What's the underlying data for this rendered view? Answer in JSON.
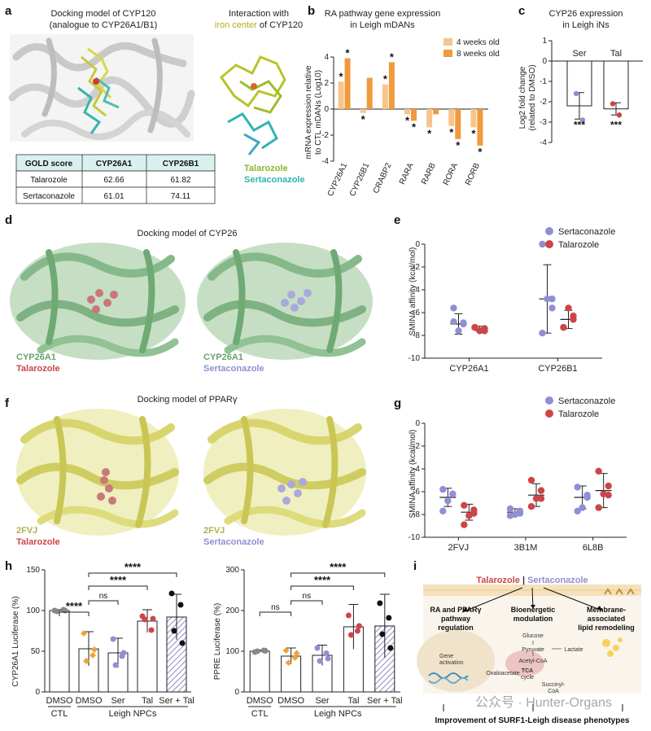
{
  "panels": {
    "a": {
      "letter": "a",
      "title_line1": "Docking model of CYP120",
      "title_line2": "(analogue to CYP26A1/B1)",
      "inset_line1": "Interaction with",
      "inset_line2_a": "iron center",
      "inset_line2_b": " of CYP120",
      "legend_talarozole": "Talarozole",
      "legend_sertaconazole": "Sertaconazole",
      "table": {
        "headers": [
          "GOLD score",
          "CYP26A1",
          "CYP26B1"
        ],
        "rows": [
          [
            "Talarozole",
            "62.66",
            "61.82"
          ],
          [
            "Sertaconazole",
            "61.01",
            "74.11"
          ]
        ]
      }
    },
    "b": {
      "letter": "b",
      "title_line1": "RA pathway gene expression",
      "title_line2": "in Leigh mDANs",
      "ylabel_line1": "mRNA expression relative",
      "ylabel_line2": "to CTL mDANs (Log10)",
      "legend": [
        "4 weeks old",
        "8 weeks old"
      ],
      "star": "*"
    },
    "c": {
      "letter": "c",
      "title_line1": "CYP26 expression",
      "title_line2": "in Leigh iNs",
      "ylabel_line1": "Log2 fold change",
      "ylabel_line2": "(related to DMSO)",
      "sig": "***"
    },
    "d": {
      "letter": "d",
      "title": "Docking model of CYP26",
      "left_protein": "CYP26A1",
      "left_ligand": "Talarozole",
      "right_protein": "CYP26A1",
      "right_ligand": "Sertaconazole"
    },
    "e": {
      "letter": "e",
      "ylabel": "SMINA affinity (kcal/mol)",
      "legend": [
        "Sertaconazole",
        "Talarozole"
      ]
    },
    "f": {
      "letter": "f",
      "title": "Docking model of PPARγ",
      "left_protein": "2FVJ",
      "left_ligand": "Talarozole",
      "right_protein": "2FVJ",
      "right_ligand": "Sertaconazole"
    },
    "g": {
      "letter": "g",
      "ylabel": "SMINA affinity (kcal/mol)",
      "legend": [
        "Sertaconazole",
        "Talarozole"
      ]
    },
    "h": {
      "letter": "h",
      "left_ylabel": "CYP26A1 Luciferase (%)",
      "right_ylabel": "PPRE Luciferase (%)",
      "ctl_label": "CTL",
      "leigh_label": "Leigh NPCs",
      "sig_ns": "ns",
      "sig_4": "****"
    },
    "i": {
      "letter": "i",
      "drug1": "Talarozole",
      "separator": " | ",
      "drug2": "Sertaconazole",
      "box1_line1": "RA and PPARγ",
      "box1_line2": "pathway",
      "box1_line3": "regulation",
      "box2_line1": "Bioenergetic",
      "box2_line2": "modulation",
      "box3_line1": "Membrane-",
      "box3_line2": "associated",
      "box3_line3": "lipid remodeling",
      "gene_activation_1": "Gene",
      "gene_activation_2": "activation",
      "glucose": "Glucose",
      "pyruvate": "Pyruvate",
      "lactate": "Lactate",
      "acetyl_coa": "Acetyl-CoA",
      "oxaloacetate": "Oxaloacetate",
      "tca": "TCA",
      "cycle": "cycle",
      "succinyl_1": "Succinyl-",
      "succinyl_2": "CoA",
      "conclusion": "Improvement of SURF1-Leigh disease phenotypes",
      "watermark": "公众号 · Hunter-Organs"
    }
  },
  "colors": {
    "light_orange": "#f7c48a",
    "dark_orange": "#ef9a3c",
    "sertaconazole_blue": "#8f8fd3",
    "talarozole_red": "#cc4549",
    "dmso_orange": "#f0a437",
    "green_protein": "#8fbf8f",
    "yellow_protein": "#e3e096",
    "table_header": "#daf0ef"
  },
  "chart_data": [
    {
      "panel": "b",
      "type": "bar",
      "title": "RA pathway gene expression in Leigh mDANs",
      "ylabel": "mRNA expression relative to CTL mDANs (Log10)",
      "ylim": [
        -4,
        4
      ],
      "yticks": [
        -4,
        -2,
        0,
        2,
        4
      ],
      "categories": [
        "CYP26A1",
        "CYP26B1",
        "CRABP2",
        "RARA",
        "RARB",
        "RORA",
        "RORB"
      ],
      "series": [
        {
          "name": "4 weeks old",
          "values": [
            2.1,
            -0.3,
            1.9,
            -0.4,
            -1.4,
            -1.3,
            -1.4
          ],
          "stars": [
            true,
            true,
            true,
            true,
            true,
            true,
            true
          ]
        },
        {
          "name": "8 weeks old",
          "values": [
            3.9,
            2.4,
            3.6,
            -0.9,
            -0.4,
            -2.3,
            -2.8
          ],
          "stars": [
            true,
            false,
            true,
            true,
            false,
            true,
            true
          ]
        }
      ],
      "legend_position": "top-right"
    },
    {
      "panel": "c",
      "type": "bar",
      "title": "CYP26 expression in Leigh iNs",
      "ylabel": "Log2 fold change (related to DMSO)",
      "ylim": [
        -4,
        1
      ],
      "yticks": [
        -4,
        -3,
        -2,
        -1,
        0,
        1
      ],
      "categories": [
        "Ser",
        "Tal"
      ],
      "values": [
        -2.2,
        -2.35
      ],
      "errors": [
        0.65,
        0.3
      ],
      "points": [
        [
          -1.6,
          -2.9
        ],
        [
          -2.1,
          -2.65
        ]
      ],
      "sig": [
        "***",
        "***"
      ]
    },
    {
      "panel": "e",
      "type": "scatter",
      "ylabel": "SMINA affinity (kcal/mol)",
      "ylim": [
        -10,
        0
      ],
      "yticks": [
        -10,
        -8,
        -6,
        -4,
        -2,
        0
      ],
      "categories": [
        "CYP26A1",
        "CYP26B1"
      ],
      "series": [
        {
          "name": "Sertaconazole",
          "values": [
            [
              -6.8,
              -7.0,
              -7.6,
              -5.6,
              -6.9
            ],
            [
              0.0,
              -4.8,
              -4.8,
              -7.8,
              -5.6
            ]
          ],
          "mean": [
            -7.0,
            -4.8
          ],
          "sd": [
            0.9,
            3.0
          ]
        },
        {
          "name": "Talarozole",
          "values": [
            [
              -7.3,
              -7.6,
              -7.6,
              -7.3,
              -7.4
            ],
            [
              -7.3,
              -6.3,
              -5.6,
              -7.3,
              -6.6
            ]
          ],
          "mean": [
            -7.4,
            -6.6
          ],
          "sd": [
            0.2,
            0.8
          ]
        }
      ],
      "legend_position": "top-right"
    },
    {
      "panel": "g",
      "type": "scatter",
      "ylabel": "SMINA affinity (kcal/mol)",
      "ylim": [
        -10,
        0
      ],
      "yticks": [
        -10,
        -8,
        -6,
        -4,
        -2,
        0
      ],
      "categories": [
        "2FVJ",
        "3B1M",
        "6L8B"
      ],
      "series": [
        {
          "name": "Sertaconazole",
          "values": [
            [
              -5.8,
              -6.2,
              -6.8,
              -7.7,
              -6.2
            ],
            [
              -7.5,
              -7.9,
              -8.0,
              -8.1,
              -7.7
            ],
            [
              -5.6,
              -6.5,
              -7.4,
              -7.7,
              -6.3
            ]
          ],
          "mean": [
            -6.5,
            -7.8,
            -6.5
          ],
          "sd": [
            0.8,
            0.3,
            1.0
          ]
        },
        {
          "name": "Talarozole",
          "values": [
            [
              -7.2,
              -7.6,
              -8.1,
              -8.9,
              -7.9
            ],
            [
              -5.0,
              -5.9,
              -6.6,
              -7.3,
              -6.6
            ],
            [
              -4.2,
              -5.5,
              -6.2,
              -7.4,
              -6.3
            ]
          ],
          "mean": [
            -7.8,
            -6.3,
            -5.9
          ],
          "sd": [
            0.7,
            1.0,
            1.5
          ]
        }
      ],
      "legend_position": "top-right"
    },
    {
      "panel": "h-left",
      "type": "bar",
      "ylabel": "CYP26A1 Luciferase (%)",
      "ylim": [
        0,
        150
      ],
      "yticks": [
        0,
        50,
        100,
        150
      ],
      "categories": [
        "DMSO",
        "DMSO",
        "Ser",
        "Tal",
        "Ser + Tal"
      ],
      "group_labels": [
        "CTL",
        "Leigh NPCs"
      ],
      "values": [
        100,
        53,
        48,
        87,
        92
      ],
      "errors": [
        1,
        21,
        18,
        14,
        28
      ],
      "points": [
        [
          100,
          101,
          99,
          100
        ],
        [
          72,
          45,
          38,
          52
        ],
        [
          65,
          44,
          33,
          48
        ],
        [
          93,
          76,
          89,
          90
        ],
        [
          121,
          107,
          75,
          60
        ]
      ],
      "comparisons": [
        {
          "a": 0,
          "b": 1,
          "label": "****"
        },
        {
          "a": 1,
          "b": 2,
          "label": "ns"
        },
        {
          "a": 1,
          "b": 3,
          "label": "****"
        },
        {
          "a": 1,
          "b": 4,
          "label": "****"
        }
      ]
    },
    {
      "panel": "h-right",
      "type": "bar",
      "ylabel": "PPRE Luciferase (%)",
      "ylim": [
        0,
        300
      ],
      "yticks": [
        0,
        100,
        200,
        300
      ],
      "categories": [
        "DMSO",
        "DMSO",
        "Ser",
        "Tal",
        "Ser + Tal"
      ],
      "group_labels": [
        "CTL",
        "Leigh NPCs"
      ],
      "values": [
        100,
        88,
        90,
        160,
        162
      ],
      "errors": [
        3,
        20,
        25,
        55,
        78
      ],
      "points": [
        [
          98,
          102,
          100,
          101
        ],
        [
          102,
          84,
          72,
          95
        ],
        [
          108,
          95,
          76,
          82
        ],
        [
          188,
          150,
          140,
          162
        ],
        [
          218,
          182,
          142,
          108
        ]
      ],
      "comparisons": [
        {
          "a": 0,
          "b": 1,
          "label": "ns"
        },
        {
          "a": 1,
          "b": 2,
          "label": "ns"
        },
        {
          "a": 1,
          "b": 3,
          "label": "****"
        },
        {
          "a": 1,
          "b": 4,
          "label": "****"
        }
      ]
    }
  ]
}
